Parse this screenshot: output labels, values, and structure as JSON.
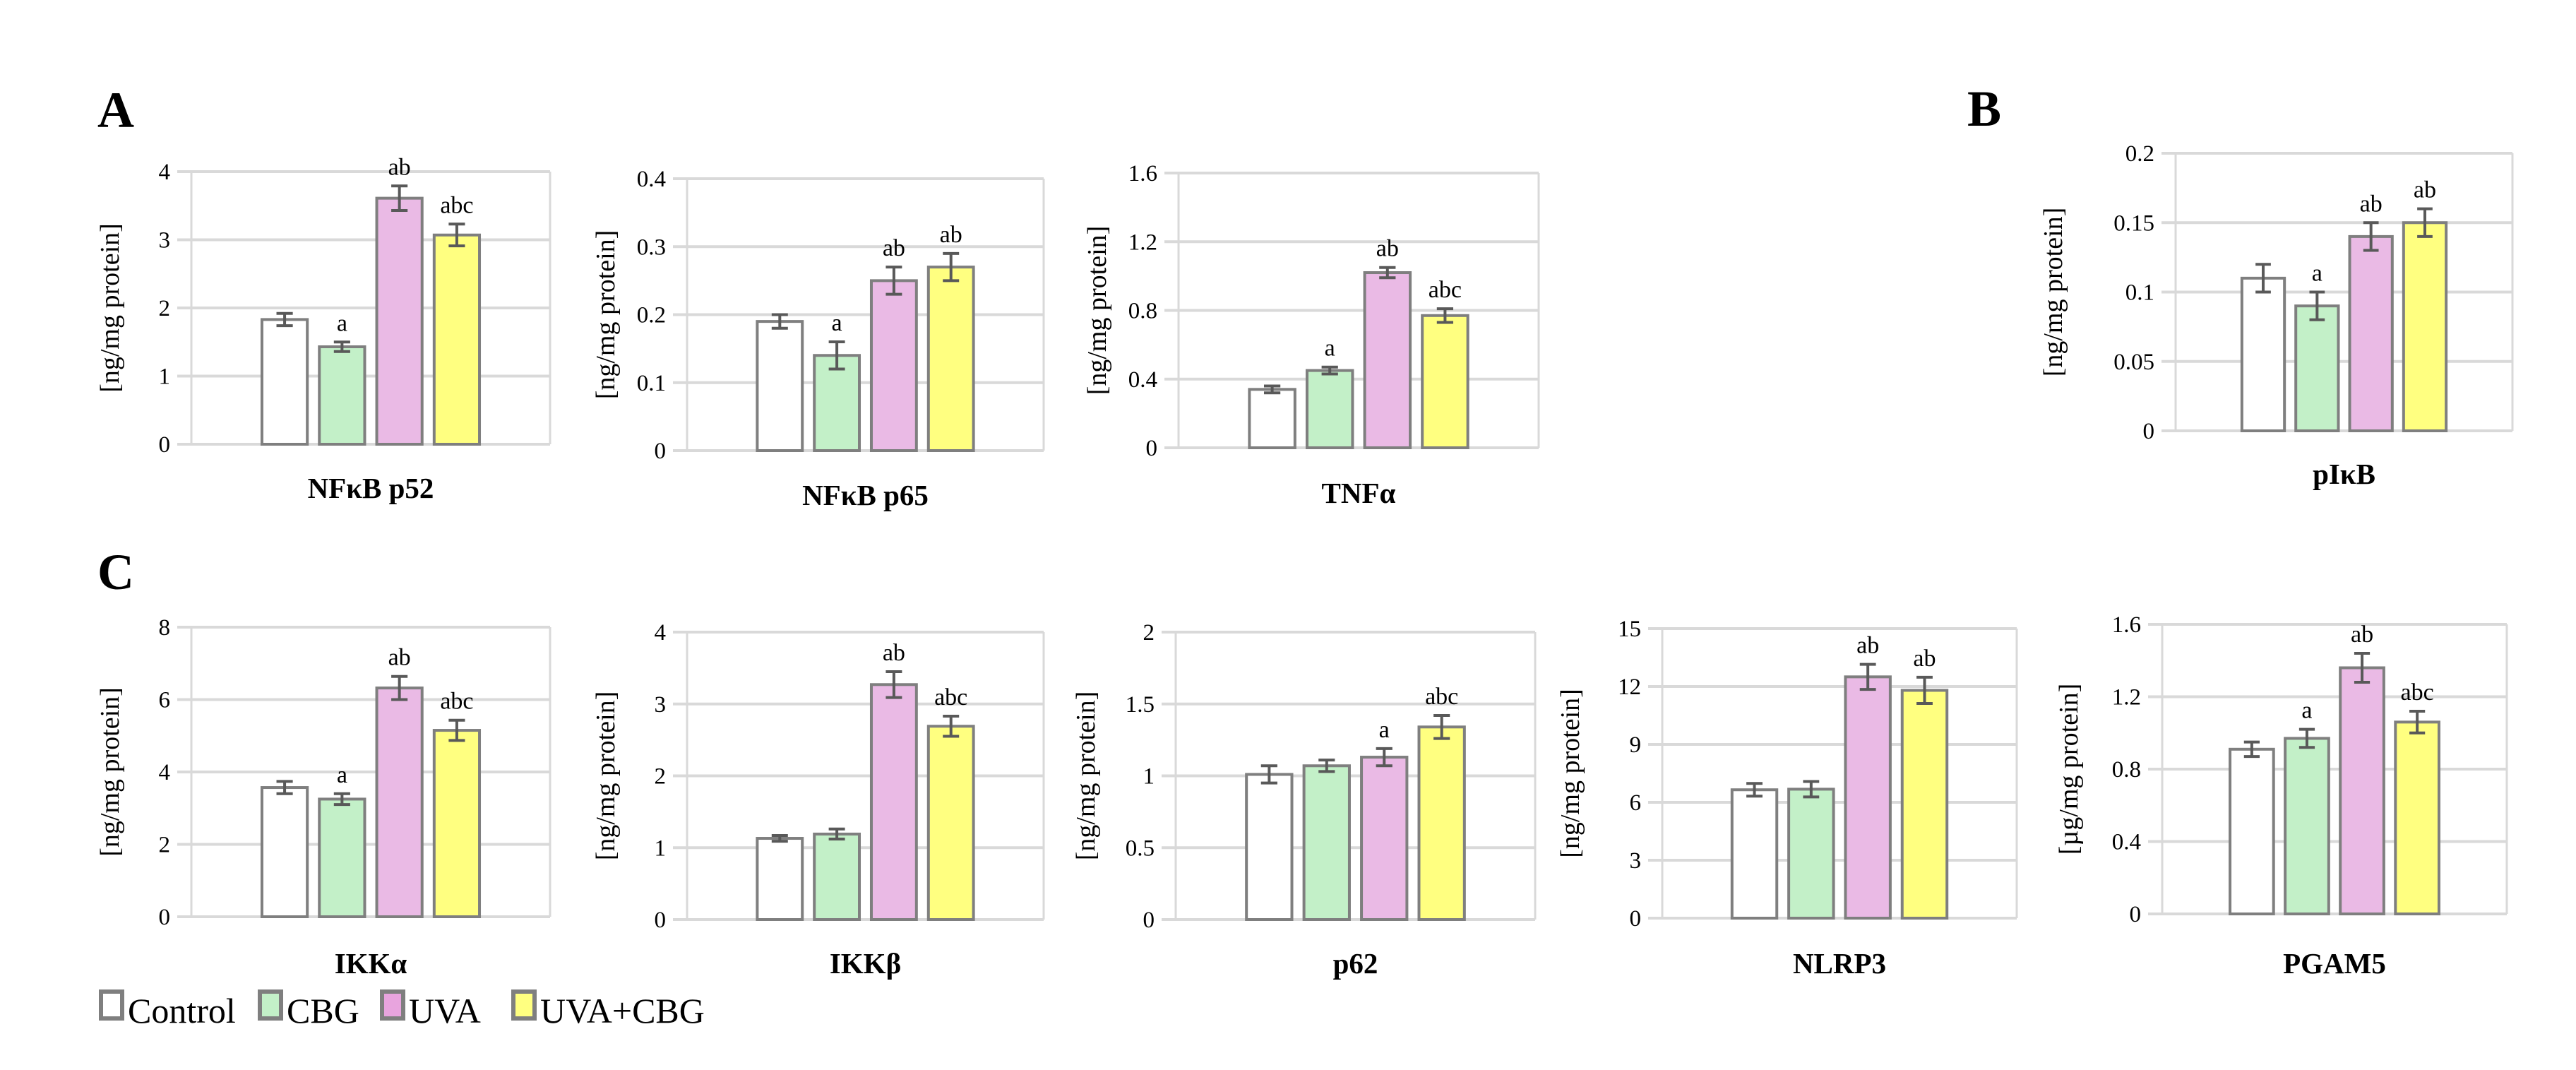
{
  "panels": [
    {
      "label": "A"
    },
    {
      "label": "B"
    },
    {
      "label": "C"
    }
  ],
  "legend": [
    {
      "name": "Control",
      "color": "#ffffff"
    },
    {
      "name": "CBG",
      "color": "#c3f0c8"
    },
    {
      "name": "UVA",
      "color": "#e8a4de"
    },
    {
      "name": "UVA+CBG",
      "color": "#ffff80"
    }
  ],
  "bar_colors": [
    "#ffffff",
    "#c3f0c8",
    "#eabae5",
    "#ffff80"
  ],
  "chart_data": [
    {
      "type": "bar",
      "panel": "A",
      "title": "NFκB p52",
      "ylabel": "[ng/mg protein]",
      "categories": [
        "Control",
        "CBG",
        "UVA",
        "UVA+CBG"
      ],
      "values": [
        1.83,
        1.43,
        3.61,
        3.07
      ],
      "errors": [
        0.09,
        0.07,
        0.18,
        0.16
      ],
      "annotations": [
        "",
        "a",
        "ab",
        "abc"
      ],
      "ylim": [
        0,
        4
      ],
      "yticks": [
        "0",
        "1",
        "2",
        "3",
        "4"
      ],
      "grid": true
    },
    {
      "type": "bar",
      "panel": "A",
      "title": "NFκB p65",
      "ylabel": "[ng/mg protein]",
      "categories": [
        "Control",
        "CBG",
        "UVA",
        "UVA+CBG"
      ],
      "values": [
        0.19,
        0.14,
        0.25,
        0.27
      ],
      "errors": [
        0.01,
        0.02,
        0.02,
        0.02
      ],
      "annotations": [
        "",
        "a",
        "ab",
        "ab"
      ],
      "ylim": [
        0,
        0.4
      ],
      "yticks": [
        "0",
        "0.1",
        "0.2",
        "0.3",
        "0.4"
      ],
      "grid": true
    },
    {
      "type": "bar",
      "panel": "A",
      "title": "TNFα",
      "ylabel": "[ng/mg protein]",
      "categories": [
        "Control",
        "CBG",
        "UVA",
        "UVA+CBG"
      ],
      "values": [
        0.34,
        0.45,
        1.02,
        0.77
      ],
      "errors": [
        0.02,
        0.02,
        0.03,
        0.04
      ],
      "annotations": [
        "",
        "a",
        "ab",
        "abc"
      ],
      "ylim": [
        0,
        1.6
      ],
      "yticks": [
        "0",
        "0.4",
        "0.8",
        "1.2",
        "1.6"
      ],
      "grid": true
    },
    {
      "type": "bar",
      "panel": "B",
      "title": "pIκB",
      "ylabel": "[ng/mg protein]",
      "categories": [
        "Control",
        "CBG",
        "UVA",
        "UVA+CBG"
      ],
      "values": [
        0.11,
        0.09,
        0.14,
        0.15
      ],
      "errors": [
        0.01,
        0.01,
        0.01,
        0.01
      ],
      "annotations": [
        "",
        "a",
        "ab",
        "ab"
      ],
      "ylim": [
        0,
        0.2
      ],
      "yticks": [
        "0",
        "0.05",
        "0.1",
        "0.15",
        "0.2"
      ],
      "grid": true
    },
    {
      "type": "bar",
      "panel": "C",
      "title": "IKKα",
      "ylabel": "[ng/mg protein]",
      "categories": [
        "Control",
        "CBG",
        "UVA",
        "UVA+CBG"
      ],
      "values": [
        3.57,
        3.25,
        6.32,
        5.15
      ],
      "errors": [
        0.17,
        0.15,
        0.32,
        0.28
      ],
      "annotations": [
        "",
        "a",
        "ab",
        "abc"
      ],
      "ylim": [
        0,
        8
      ],
      "yticks": [
        "0",
        "2",
        "4",
        "6",
        "8"
      ],
      "grid": true
    },
    {
      "type": "bar",
      "panel": "C",
      "title": "IKKβ",
      "ylabel": "[ng/mg protein]",
      "categories": [
        "Control",
        "CBG",
        "UVA",
        "UVA+CBG"
      ],
      "values": [
        1.13,
        1.19,
        3.27,
        2.69
      ],
      "errors": [
        0.04,
        0.07,
        0.18,
        0.14
      ],
      "annotations": [
        "",
        "",
        "ab",
        "abc"
      ],
      "ylim": [
        0,
        4
      ],
      "yticks": [
        "0",
        "1",
        "2",
        "3",
        "4"
      ],
      "grid": true
    },
    {
      "type": "bar",
      "panel": "C",
      "title": "p62",
      "ylabel": "[ng/mg protein]",
      "categories": [
        "Control",
        "CBG",
        "UVA",
        "UVA+CBG"
      ],
      "values": [
        1.01,
        1.07,
        1.13,
        1.34
      ],
      "errors": [
        0.06,
        0.04,
        0.06,
        0.08
      ],
      "annotations": [
        "",
        "",
        "a",
        "abc"
      ],
      "ylim": [
        0,
        2
      ],
      "yticks": [
        "0",
        "0.5",
        "1",
        "1.5",
        "2"
      ],
      "grid": true
    },
    {
      "type": "bar",
      "panel": "C",
      "title": "NLRP3",
      "ylabel": "[ng/mg protein]",
      "categories": [
        "Control",
        "CBG",
        "UVA",
        "UVA+CBG"
      ],
      "values": [
        6.65,
        6.68,
        12.5,
        11.8
      ],
      "errors": [
        0.33,
        0.4,
        0.65,
        0.68
      ],
      "annotations": [
        "",
        "",
        "ab",
        "ab"
      ],
      "ylim": [
        0,
        15
      ],
      "yticks": [
        "0",
        "3",
        "6",
        "9",
        "12",
        "15"
      ],
      "grid": true
    },
    {
      "type": "bar",
      "panel": "C",
      "title": "PGAM5",
      "ylabel": "[µg/mg protein]",
      "categories": [
        "Control",
        "CBG",
        "UVA",
        "UVA+CBG"
      ],
      "values": [
        0.91,
        0.97,
        1.36,
        1.06
      ],
      "errors": [
        0.04,
        0.05,
        0.08,
        0.06
      ],
      "annotations": [
        "",
        "a",
        "ab",
        "abc"
      ],
      "ylim": [
        0,
        1.6
      ],
      "yticks": [
        "0",
        "0.4",
        "0.8",
        "1.2",
        "1.6"
      ],
      "grid": true
    }
  ]
}
